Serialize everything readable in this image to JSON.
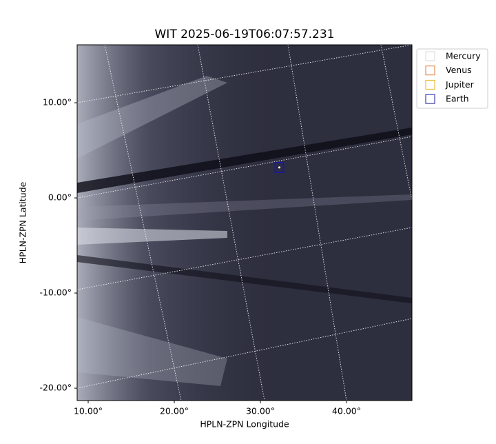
{
  "chart_data": {
    "type": "image-scatter",
    "title": "WIT 2025-06-19T06:07:57.231",
    "x_label": "HPLN-ZPN Longitude",
    "y_label": "HPLN-ZPN Latitude",
    "xlim": [
      8.72,
      47.6
    ],
    "ylim": [
      -21.3,
      16.09
    ],
    "xticks": [
      {
        "value": 10,
        "label": "10.00°"
      },
      {
        "value": 20,
        "label": "20.00°"
      },
      {
        "value": 30,
        "label": "30.00°"
      },
      {
        "value": 40,
        "label": "40.00°"
      }
    ],
    "yticks": [
      {
        "value": 10,
        "label": "10.00°"
      },
      {
        "value": 0,
        "label": "0.00°"
      },
      {
        "value": -10,
        "label": "-10.00°"
      },
      {
        "value": -20,
        "label": "-20.00°"
      }
    ],
    "legend": "upper right outside",
    "series": [
      {
        "name": "Mercury",
        "color": "#d9d9d9"
      },
      {
        "name": "Venus",
        "color": "#e07b39"
      },
      {
        "name": "Jupiter",
        "color": "#e6b422"
      },
      {
        "name": "Earth",
        "color": "#1a1aa0",
        "x": [
          32.2
        ],
        "y": [
          3.2
        ]
      }
    ]
  }
}
